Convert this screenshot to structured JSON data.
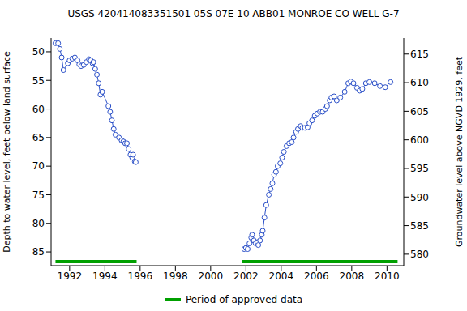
{
  "chart_data": {
    "type": "line",
    "title": "USGS 420414083351501 05S 07E 10 ABB01 MONROE CO WELL G-7",
    "y_label": "Depth to water level, feet below land surface",
    "y2_label": "Groundwater level above NGVD 1929, feet",
    "xlim": [
      1990.95,
      2010.95
    ],
    "xticks": [
      1992,
      1994,
      1996,
      1998,
      2000,
      2002,
      2004,
      2006,
      2008,
      2010
    ],
    "ylim": [
      87.4,
      47.6
    ],
    "yticks": [
      50,
      55,
      60,
      65,
      70,
      75,
      80,
      85
    ],
    "y2lim": [
      578,
      617.8
    ],
    "y2ticks": [
      580,
      585,
      590,
      595,
      600,
      605,
      610,
      615
    ],
    "x": [
      1991.2,
      1991.35,
      1991.45,
      1991.55,
      1991.65,
      1991.9,
      1992,
      1992.15,
      1992.3,
      1992.45,
      1992.55,
      1992.65,
      1992.8,
      1992.95,
      1993.1,
      1993.2,
      1993.3,
      1993.35,
      1993.45,
      1993.55,
      1993.65,
      1993.75,
      1993.85,
      1994.2,
      1994.3,
      1994.4,
      1994.5,
      1994.6,
      1994.8,
      1994.95,
      1995.05,
      1995.15,
      1995.25,
      1995.35,
      1995.45,
      1995.55,
      1995.6,
      1995.7,
      1995.75,
      1998.8,
      2001.9,
      2002,
      2002.1,
      2002.2,
      2002.3,
      2002.35,
      2002.45,
      2002.55,
      2002.65,
      2002.7,
      2002.8,
      2002.9,
      2002.95,
      2003.05,
      2003.15,
      2003.3,
      2003.4,
      2003.5,
      2003.6,
      2003.7,
      2003.8,
      2003.95,
      2004.05,
      2004.15,
      2004.3,
      2004.45,
      2004.6,
      2004.7,
      2004.85,
      2004.95,
      2005.1,
      2005.2,
      2005.35,
      2005.5,
      2005.6,
      2005.75,
      2005.9,
      2006.05,
      2006.2,
      2006.35,
      2006.5,
      2006.6,
      2006.75,
      2006.85,
      2007,
      2007.15,
      2007.35,
      2007.6,
      2007.8,
      2007.95,
      2008.1,
      2008.3,
      2008.45,
      2008.6,
      2008.8,
      2009,
      2009.3,
      2009.6,
      2009.9,
      2010.2
    ],
    "series": [
      {
        "color": "#2a4fc8",
        "marker": "circle",
        "line_style": "solid",
        "values": [
          48.5,
          48.5,
          49.5,
          51,
          53.2,
          52,
          51.5,
          51.2,
          51,
          51.5,
          52.2,
          52.5,
          52.3,
          51.8,
          51.3,
          51.5,
          52,
          51.8,
          53,
          54,
          55.5,
          57.5,
          57,
          59.5,
          60.5,
          62,
          63.5,
          64.5,
          65,
          65.5,
          65.7,
          66,
          66,
          67,
          68,
          68.5,
          68,
          69.2,
          69.3,
          null,
          84.5,
          84.3,
          84.5,
          83.5,
          82.5,
          82,
          83,
          83.5,
          83.3,
          83.8,
          83,
          82,
          81.3,
          79,
          76.8,
          75,
          74,
          73,
          71.5,
          71,
          70,
          69.5,
          68.5,
          67.5,
          66.5,
          66,
          65.8,
          65,
          64,
          63.5,
          63,
          63.3,
          63.3,
          63.2,
          62.5,
          62,
          61.2,
          60.8,
          60.5,
          60.5,
          60,
          59.5,
          58.5,
          58,
          57.8,
          58.5,
          58,
          57,
          55.5,
          55.2,
          55.5,
          56.3,
          56.8,
          56.5,
          55.5,
          55.3,
          55.5,
          56,
          56.2,
          55.3
        ]
      },
      {
        "name": "Period of approved data",
        "color": "#00a000",
        "marker": "none",
        "line_style": "solid",
        "x": [
          1991.2,
          1995.8,
          1998.8,
          2001.8,
          2010.6
        ],
        "values": [
          86.7,
          86.7,
          null,
          86.7,
          86.7
        ]
      }
    ]
  }
}
